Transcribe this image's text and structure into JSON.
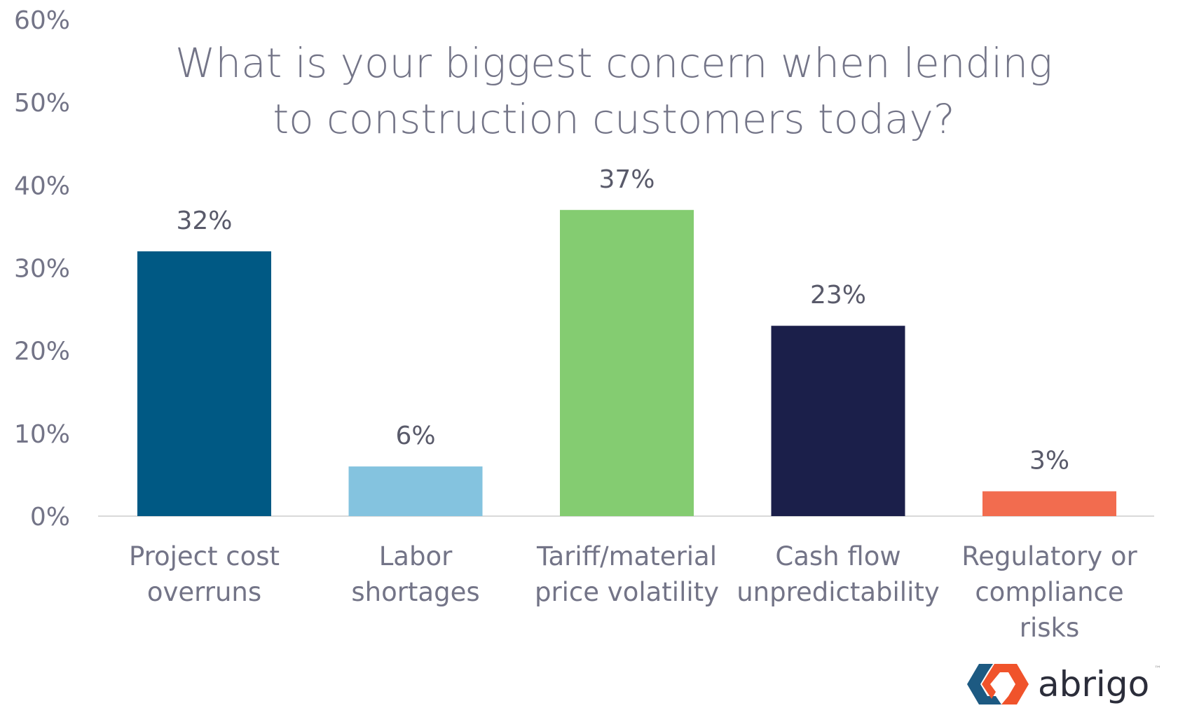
{
  "chart_data": {
    "type": "bar",
    "title": [
      "What is your biggest concern when lending",
      "to construction customers today?"
    ],
    "categories": [
      [
        "Project cost",
        "overruns"
      ],
      [
        "Labor",
        "shortages"
      ],
      [
        "Tariff/material",
        "price volatility"
      ],
      [
        "Cash flow",
        "unpredictability"
      ],
      [
        "Regulatory or",
        "compliance",
        "risks"
      ]
    ],
    "values": [
      32,
      6,
      37,
      23,
      3
    ],
    "data_labels": [
      "32%",
      "6%",
      "37%",
      "23%",
      "3%"
    ],
    "colors": [
      "#005984",
      "#84C3DF",
      "#84CC71",
      "#1B1F4A",
      "#F26C4F"
    ],
    "ylim": [
      0,
      60
    ],
    "yticks": [
      0,
      10,
      20,
      30,
      40,
      50,
      60
    ],
    "ytick_labels": [
      "0%",
      "10%",
      "20%",
      "30%",
      "40%",
      "50%",
      "60%"
    ],
    "xlabel": "",
    "ylabel": "",
    "grid": false,
    "legend": "none"
  },
  "logo": {
    "text": "abrigo",
    "tm": "™"
  }
}
